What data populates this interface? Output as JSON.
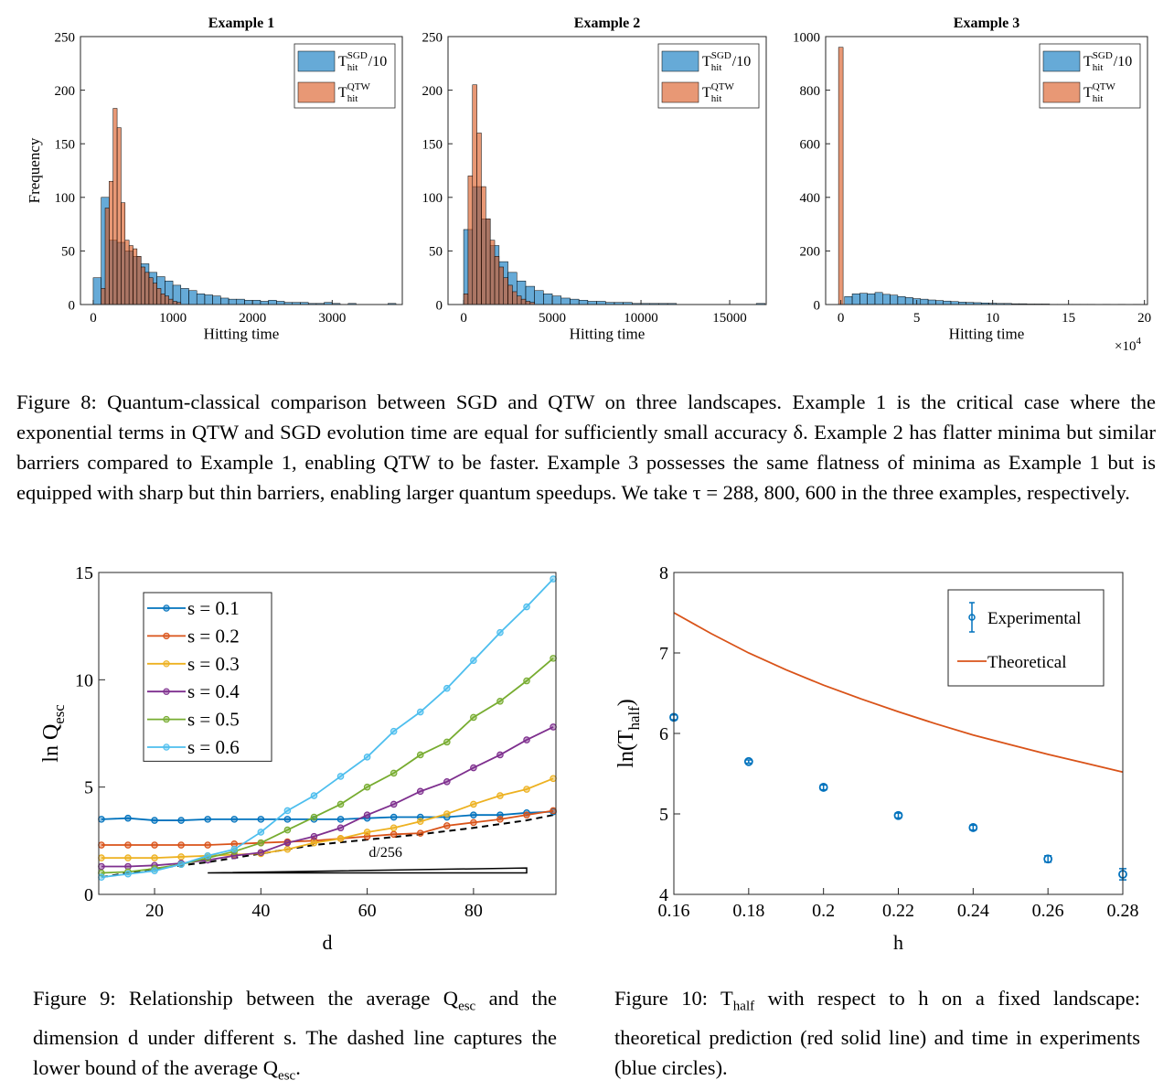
{
  "chart_data": [
    {
      "type": "histogram",
      "title": "Example 1",
      "xlabel": "Hitting time",
      "ylabel": "Frequency",
      "xlim": [
        -160,
        3880
      ],
      "xticks": [
        0,
        1000,
        2000,
        3000
      ],
      "ylim": [
        0,
        250
      ],
      "yticks": [
        0,
        50,
        100,
        150,
        200,
        250
      ],
      "legend": "upper right",
      "bar_opacity": 0.6,
      "series": [
        {
          "name": "T",
          "sub": "hit",
          "sup": "SGD",
          "suffix": "/10",
          "color": "#0072bd",
          "bins": [
            0,
            100,
            200,
            300,
            400,
            500,
            600,
            700,
            800,
            900,
            1000,
            1100,
            1200,
            1300,
            1400,
            1500,
            1600,
            1700,
            1800,
            1900,
            2000,
            2100,
            2200,
            2300,
            2400,
            2500,
            2600,
            2700,
            2800,
            2900,
            3000,
            3100,
            3200,
            3300,
            3400,
            3500,
            3600,
            3700,
            3800
          ],
          "values": [
            25,
            100,
            60,
            58,
            50,
            45,
            38,
            30,
            26,
            22,
            18,
            15,
            13,
            10,
            9,
            8,
            6,
            5,
            5,
            4,
            4,
            3,
            4,
            3,
            2,
            2,
            2,
            1,
            1,
            2,
            1,
            0,
            1,
            0,
            0,
            0,
            0,
            1
          ]
        },
        {
          "name": "T",
          "sub": "hit",
          "sup": "QTW",
          "color": "#d95319",
          "bins": [
            100,
            150,
            200,
            250,
            300,
            350,
            400,
            450,
            500,
            550,
            600,
            650,
            700,
            750,
            800,
            850,
            900,
            950,
            1000,
            1050,
            1100
          ],
          "values": [
            15,
            90,
            115,
            183,
            165,
            95,
            60,
            55,
            52,
            45,
            35,
            30,
            25,
            20,
            15,
            10,
            8,
            5,
            3,
            2
          ]
        }
      ]
    },
    {
      "type": "histogram",
      "title": "Example 2",
      "xlabel": "Hitting time",
      "xlim": [
        -880,
        17060
      ],
      "xticks": [
        0,
        5000,
        10000,
        15000
      ],
      "ylim": [
        0,
        250
      ],
      "yticks": [
        0,
        50,
        100,
        150,
        200,
        250
      ],
      "legend": "upper right",
      "bar_opacity": 0.6,
      "series": [
        {
          "name": "T",
          "sub": "hit",
          "sup": "SGD",
          "suffix": "/10",
          "color": "#0072bd",
          "bins": [
            0,
            500,
            1000,
            1500,
            2000,
            2500,
            3000,
            3500,
            4000,
            4500,
            5000,
            5500,
            6000,
            6500,
            7000,
            7500,
            8000,
            8500,
            9000,
            9500,
            10000,
            10500,
            11000,
            11500,
            12000,
            12500,
            13000,
            13500,
            14000,
            14500,
            15000,
            15500,
            16000,
            16500,
            17000
          ],
          "values": [
            70,
            110,
            80,
            55,
            40,
            30,
            22,
            17,
            13,
            10,
            8,
            6,
            5,
            4,
            3,
            3,
            2,
            2,
            2,
            1,
            1,
            1,
            1,
            1,
            0,
            0,
            0,
            0,
            0,
            0,
            0,
            0,
            0,
            1
          ]
        },
        {
          "name": "T",
          "sub": "hit",
          "sup": "QTW",
          "color": "#d95319",
          "bins": [
            0,
            250,
            500,
            750,
            1000,
            1250,
            1500,
            1750,
            2000,
            2250,
            2500,
            2750,
            3000,
            3250,
            3500,
            3750,
            4000
          ],
          "values": [
            10,
            120,
            205,
            160,
            110,
            80,
            60,
            45,
            35,
            25,
            18,
            12,
            8,
            5,
            3,
            2
          ]
        }
      ]
    },
    {
      "type": "histogram",
      "title": "Example 3",
      "xlabel": "Hitting time",
      "x_multiplier": "×10",
      "x_multiplier_exp": "4",
      "xlim": [
        -1.0,
        20.2
      ],
      "xticks": [
        0,
        5,
        10,
        15,
        20
      ],
      "ylim": [
        0,
        1000
      ],
      "yticks": [
        0,
        200,
        400,
        600,
        800,
        1000
      ],
      "legend": "upper right",
      "bar_opacity": 0.6,
      "series": [
        {
          "name": "T",
          "sub": "hit",
          "sup": "SGD",
          "suffix": "/10",
          "color": "#0072bd",
          "bins": [
            0.25,
            0.75,
            1.25,
            1.75,
            2.25,
            2.75,
            3.25,
            3.75,
            4.25,
            4.75,
            5.25,
            5.75,
            6.25,
            6.75,
            7.25,
            7.75,
            8.25,
            8.75,
            9.25,
            9.75,
            10.25,
            10.75,
            11.25,
            11.75,
            12.25,
            12.75,
            13.25,
            13.75,
            14.25,
            14.75,
            15.25,
            15.75,
            16.25,
            16.75,
            17.25,
            17.75,
            18.25,
            18.75,
            19.25,
            19.75
          ],
          "values": [
            30,
            40,
            42,
            40,
            45,
            38,
            35,
            30,
            26,
            22,
            20,
            17,
            15,
            13,
            11,
            9,
            8,
            7,
            6,
            5,
            4,
            4,
            3,
            3,
            2,
            2,
            2,
            1,
            1,
            1,
            1,
            1,
            1,
            0,
            1,
            0,
            1,
            0,
            1
          ]
        },
        {
          "name": "T",
          "sub": "hit",
          "sup": "QTW",
          "color": "#d95319",
          "bins": [
            -0.15,
            0.15
          ],
          "values": [
            960
          ]
        }
      ]
    },
    {
      "type": "line",
      "xlabel": "d",
      "ylabel": {
        "text": "ln Q",
        "sub": "esc"
      },
      "x": [
        10,
        15,
        20,
        25,
        30,
        35,
        40,
        45,
        50,
        55,
        60,
        65,
        70,
        75,
        80,
        85,
        90,
        95
      ],
      "xlim": [
        9.5,
        95.5
      ],
      "xticks": [
        20,
        40,
        60,
        80
      ],
      "ylim": [
        0,
        15
      ],
      "yticks": [
        0,
        5,
        10,
        15
      ],
      "legend": "upper left",
      "series": [
        {
          "name": "s = 0.1",
          "color": "#0072bd",
          "values": [
            3.5,
            3.55,
            3.45,
            3.45,
            3.5,
            3.5,
            3.5,
            3.5,
            3.5,
            3.5,
            3.55,
            3.6,
            3.6,
            3.6,
            3.7,
            3.7,
            3.8,
            3.85
          ]
        },
        {
          "name": "s = 0.2",
          "color": "#d95319",
          "values": [
            2.3,
            2.3,
            2.3,
            2.3,
            2.3,
            2.35,
            2.4,
            2.45,
            2.5,
            2.6,
            2.7,
            2.8,
            2.85,
            3.2,
            3.35,
            3.5,
            3.7,
            3.9
          ]
        },
        {
          "name": "s = 0.3",
          "color": "#edb120",
          "values": [
            1.7,
            1.7,
            1.7,
            1.75,
            1.8,
            1.85,
            1.9,
            2.1,
            2.4,
            2.6,
            2.9,
            3.1,
            3.4,
            3.75,
            4.2,
            4.6,
            4.9,
            5.4
          ]
        },
        {
          "name": "s = 0.4",
          "color": "#7e2f8e",
          "values": [
            1.3,
            1.3,
            1.35,
            1.45,
            1.6,
            1.8,
            1.95,
            2.4,
            2.7,
            3.1,
            3.7,
            4.2,
            4.8,
            5.25,
            5.9,
            6.5,
            7.2,
            7.8
          ]
        },
        {
          "name": "s = 0.5",
          "color": "#77ac30",
          "values": [
            1.0,
            1.05,
            1.2,
            1.4,
            1.7,
            2.0,
            2.4,
            3.0,
            3.6,
            4.2,
            5.0,
            5.65,
            6.5,
            7.1,
            8.25,
            9.0,
            9.95,
            11.0
          ]
        },
        {
          "name": "s = 0.6",
          "color": "#4dbeee",
          "values": [
            0.8,
            0.95,
            1.1,
            1.4,
            1.8,
            2.1,
            2.9,
            3.9,
            4.6,
            5.5,
            6.4,
            7.6,
            8.5,
            9.6,
            10.9,
            12.2,
            13.4,
            14.7
          ]
        }
      ],
      "lower_bound": {
        "x": [
          10,
          20,
          30,
          40,
          50,
          60,
          70,
          80,
          90,
          95
        ],
        "values": [
          0.8,
          1.2,
          1.5,
          1.9,
          2.3,
          2.55,
          2.8,
          3.1,
          3.45,
          3.7
        ]
      },
      "annotation": "d/256",
      "slope_triangle": {
        "x": [
          30,
          90
        ],
        "y": [
          1.0,
          1.23
        ]
      }
    },
    {
      "type": "errorbar",
      "xlabel": "h",
      "ylabel": {
        "text": "ln(T",
        "sub": "half",
        "suffix": ")"
      },
      "xlim": [
        0.16,
        0.28
      ],
      "xticks": [
        0.16,
        0.18,
        0.2,
        0.22,
        0.24,
        0.26,
        0.28
      ],
      "ylim": [
        4,
        8
      ],
      "yticks": [
        4,
        5,
        6,
        7,
        8
      ],
      "legend": "upper right",
      "series": [
        {
          "name": "Experimental",
          "color": "#0072bd",
          "x": [
            0.16,
            0.18,
            0.2,
            0.22,
            0.24,
            0.26,
            0.28
          ],
          "values": [
            6.2,
            5.65,
            5.33,
            4.98,
            4.83,
            4.44,
            4.25
          ],
          "errors": [
            0.03,
            0.02,
            0.03,
            0.03,
            0.03,
            0.04,
            0.07
          ]
        },
        {
          "name": "Theoretical",
          "color": "#d95319",
          "x": [
            0.16,
            0.17,
            0.18,
            0.19,
            0.2,
            0.21,
            0.22,
            0.23,
            0.24,
            0.25,
            0.26,
            0.27,
            0.28
          ],
          "values": [
            7.5,
            7.24,
            7.0,
            6.79,
            6.6,
            6.43,
            6.27,
            6.12,
            5.98,
            5.86,
            5.74,
            5.63,
            5.52
          ]
        }
      ]
    }
  ],
  "figure_8_caption": [
    "Figure 8: Quantum-classical comparison between SGD and QTW on three landscapes. Example 1 is the critical case where the exponential terms in QTW and SGD evolution time are equal for sufficiently small accuracy δ. Example 2 has flatter minima but similar barriers compared to Example 1, enabling QTW to be faster. Example 3 possesses the same flatness of minima as Example 1 but is equipped with sharp but thin barriers, enabling larger quantum speedups. We take τ = 288, 800, 600 in the three examples, respectively."
  ],
  "figure_9_caption": [
    "Figure 9: Relationship between the average Q",
    "esc",
    " and the dimension d under different s. The dashed line captures the lower bound of the average Q",
    "esc",
    "."
  ],
  "figure_10_caption": [
    "Figure 10: T",
    "half",
    " with respect to h on a fixed landscape: theoretical prediction (red solid line) and time in experiments (blue circles)."
  ]
}
